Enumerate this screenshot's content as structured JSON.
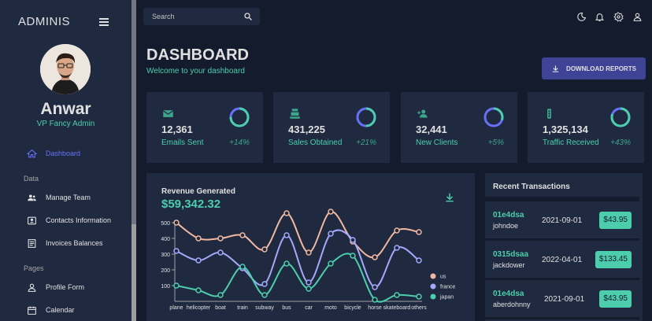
{
  "sidebar": {
    "brand": "ADMINIS",
    "profile": {
      "name": "Anwar",
      "role": "VP Fancy Admin"
    },
    "items": [
      {
        "label": "Dashboard",
        "icon": "home-icon",
        "active": true
      },
      {
        "label": "Manage Team",
        "icon": "people-icon"
      },
      {
        "label": "Contacts Information",
        "icon": "contacts-icon"
      },
      {
        "label": "Invoices Balances",
        "icon": "receipt-icon"
      },
      {
        "label": "Profile Form",
        "icon": "person-icon"
      },
      {
        "label": "Calendar",
        "icon": "calendar-icon"
      }
    ],
    "sections": {
      "data": "Data",
      "pages": "Pages"
    }
  },
  "topbar": {
    "search_placeholder": "Search",
    "icons": [
      "dark-mode-icon",
      "notifications-icon",
      "settings-icon",
      "person-icon"
    ]
  },
  "header": {
    "title": "DASHBOARD",
    "subtitle": "Welcome to your dashboard",
    "download_label": "DOWNLOAD REPORTS"
  },
  "stats": [
    {
      "value": "12,361",
      "label": "Emails Sent",
      "change": "+14%",
      "icon": "email-icon",
      "progress": 0.75
    },
    {
      "value": "431,225",
      "label": "Sales Obtained",
      "change": "+21%",
      "icon": "point-of-sale-icon",
      "progress": 0.5
    },
    {
      "value": "32,441",
      "label": "New Clients",
      "change": "+5%",
      "icon": "person-add-icon",
      "progress": 0.3
    },
    {
      "value": "1,325,134",
      "label": "Traffic Received",
      "change": "+43%",
      "icon": "traffic-icon",
      "progress": 0.8
    }
  ],
  "revenue": {
    "title": "Revenue Generated",
    "value": "$59,342.32"
  },
  "chart_data": {
    "type": "line",
    "categories": [
      "plane",
      "helicopter",
      "boat",
      "train",
      "subway",
      "bus",
      "car",
      "moto",
      "bicycle",
      "horse",
      "skateboard",
      "others"
    ],
    "series": [
      {
        "name": "us",
        "color": "#f2b8a0",
        "values": [
          500,
          400,
          400,
          420,
          330,
          560,
          310,
          570,
          380,
          280,
          450,
          440
        ]
      },
      {
        "name": "france",
        "color": "#a4a9fc",
        "values": [
          320,
          260,
          310,
          210,
          110,
          420,
          120,
          430,
          390,
          90,
          340,
          260
        ]
      },
      {
        "name": "japan",
        "color": "#4cceac",
        "values": [
          100,
          70,
          40,
          220,
          40,
          240,
          80,
          240,
          290,
          10,
          40,
          30
        ]
      }
    ],
    "yticks": [
      100,
      200,
      300,
      400,
      500
    ],
    "ylim": [
      0,
      600
    ],
    "grid": false,
    "legend": "right"
  },
  "transactions": {
    "title": "Recent Transactions",
    "rows": [
      {
        "id": "01e4dsa",
        "user": "johndoe",
        "date": "2021-09-01",
        "amount": "$43.95"
      },
      {
        "id": "0315dsaa",
        "user": "jackdower",
        "date": "2022-04-01",
        "amount": "$133.45"
      },
      {
        "id": "01e4dsa",
        "user": "aberdohnny",
        "date": "2021-09-01",
        "amount": "$43.95"
      }
    ]
  }
}
